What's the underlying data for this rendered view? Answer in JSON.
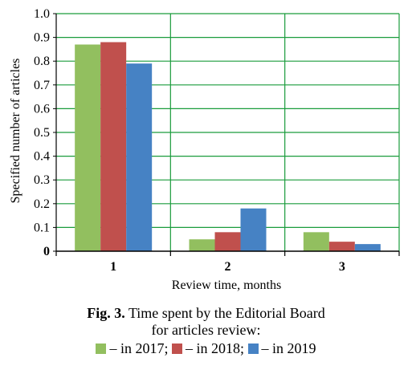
{
  "chart_data": {
    "type": "bar",
    "categories": [
      "1",
      "2",
      "3"
    ],
    "series": [
      {
        "name": "– in 2017;",
        "values": [
          0.87,
          0.05,
          0.08
        ],
        "color": "#92bf5f"
      },
      {
        "name": "– in 2018;",
        "values": [
          0.88,
          0.08,
          0.04
        ],
        "color": "#c0504d"
      },
      {
        "name": "– in 2019",
        "values": [
          0.79,
          0.18,
          0.03
        ],
        "color": "#4682c4"
      }
    ],
    "xlabel": "Review time, months",
    "ylabel": "Specified number of articles",
    "ylim": [
      0,
      1.0
    ],
    "yticks": [
      "0",
      "0.1",
      "0.2",
      "0.3",
      "0.4",
      "0.5",
      "0.6",
      "0.7",
      "0.8",
      "0.9",
      "1.0"
    ],
    "grid": true,
    "grid_color": "#1a9c3c"
  },
  "caption": {
    "label": "Fig. 3.",
    "text": "Time spent by the Editorial Board",
    "text2": "for articles review:"
  }
}
